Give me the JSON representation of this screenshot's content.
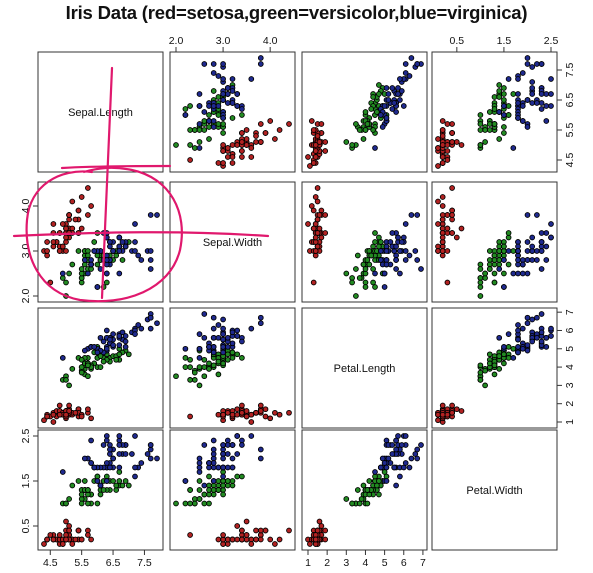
{
  "chart_data": {
    "type": "scatter",
    "title": "Iris Data (red=setosa,green=versicolor,blue=virginica)",
    "variables": [
      "Sepal.Length",
      "Sepal.Width",
      "Petal.Length",
      "Petal.Width"
    ],
    "axis_ranges": {
      "Sepal.Length": [
        4.3,
        7.9
      ],
      "Sepal.Width": [
        2.0,
        4.4
      ],
      "Petal.Length": [
        1.0,
        6.9
      ],
      "Petal.Width": [
        0.1,
        2.5
      ]
    },
    "tick_labels": {
      "Sepal.Length": [
        "4.5",
        "5.5",
        "6.5",
        "7.5"
      ],
      "Sepal.Width": [
        "2.0",
        "3.0",
        "4.0"
      ],
      "Petal.Length": [
        "1",
        "2",
        "3",
        "4",
        "5",
        "6",
        "7"
      ],
      "Petal.Width": [
        "0.5",
        "1.5",
        "2.5"
      ]
    },
    "series": [
      {
        "name": "setosa",
        "color": "#b22222",
        "points": [
          [
            5.1,
            3.5,
            1.4,
            0.2
          ],
          [
            4.9,
            3.0,
            1.4,
            0.2
          ],
          [
            4.7,
            3.2,
            1.3,
            0.2
          ],
          [
            4.6,
            3.1,
            1.5,
            0.2
          ],
          [
            5.0,
            3.6,
            1.4,
            0.2
          ],
          [
            5.4,
            3.9,
            1.7,
            0.4
          ],
          [
            4.6,
            3.4,
            1.4,
            0.3
          ],
          [
            5.0,
            3.4,
            1.5,
            0.2
          ],
          [
            4.4,
            2.9,
            1.4,
            0.2
          ],
          [
            4.9,
            3.1,
            1.5,
            0.1
          ],
          [
            5.4,
            3.7,
            1.5,
            0.2
          ],
          [
            4.8,
            3.4,
            1.6,
            0.2
          ],
          [
            4.8,
            3.0,
            1.4,
            0.1
          ],
          [
            4.3,
            3.0,
            1.1,
            0.1
          ],
          [
            5.8,
            4.0,
            1.2,
            0.2
          ],
          [
            5.7,
            4.4,
            1.5,
            0.4
          ],
          [
            5.4,
            3.9,
            1.3,
            0.4
          ],
          [
            5.1,
            3.5,
            1.4,
            0.3
          ],
          [
            5.7,
            3.8,
            1.7,
            0.3
          ],
          [
            5.1,
            3.8,
            1.5,
            0.3
          ],
          [
            5.4,
            3.4,
            1.7,
            0.2
          ],
          [
            5.1,
            3.7,
            1.5,
            0.4
          ],
          [
            4.6,
            3.6,
            1.0,
            0.2
          ],
          [
            5.1,
            3.3,
            1.7,
            0.5
          ],
          [
            4.8,
            3.4,
            1.9,
            0.2
          ],
          [
            5.0,
            3.0,
            1.6,
            0.2
          ],
          [
            5.0,
            3.4,
            1.6,
            0.4
          ],
          [
            5.2,
            3.5,
            1.5,
            0.2
          ],
          [
            5.2,
            3.4,
            1.4,
            0.2
          ],
          [
            4.7,
            3.2,
            1.6,
            0.2
          ],
          [
            4.8,
            3.1,
            1.6,
            0.2
          ],
          [
            5.4,
            3.4,
            1.5,
            0.4
          ],
          [
            5.2,
            4.1,
            1.5,
            0.1
          ],
          [
            5.5,
            4.2,
            1.4,
            0.2
          ],
          [
            4.9,
            3.1,
            1.5,
            0.2
          ],
          [
            5.0,
            3.2,
            1.2,
            0.2
          ],
          [
            5.5,
            3.5,
            1.3,
            0.2
          ],
          [
            4.9,
            3.6,
            1.4,
            0.1
          ],
          [
            4.4,
            3.0,
            1.3,
            0.2
          ],
          [
            5.1,
            3.4,
            1.5,
            0.2
          ],
          [
            5.0,
            3.5,
            1.3,
            0.3
          ],
          [
            4.5,
            2.3,
            1.3,
            0.3
          ],
          [
            4.4,
            3.2,
            1.3,
            0.2
          ],
          [
            5.0,
            3.5,
            1.6,
            0.6
          ],
          [
            5.1,
            3.8,
            1.9,
            0.4
          ],
          [
            4.8,
            3.0,
            1.4,
            0.3
          ],
          [
            5.1,
            3.8,
            1.6,
            0.2
          ],
          [
            4.6,
            3.2,
            1.4,
            0.2
          ],
          [
            5.3,
            3.7,
            1.5,
            0.2
          ],
          [
            5.0,
            3.3,
            1.4,
            0.2
          ]
        ]
      },
      {
        "name": "versicolor",
        "color": "#228b22",
        "points": [
          [
            7.0,
            3.2,
            4.7,
            1.4
          ],
          [
            6.4,
            3.2,
            4.5,
            1.5
          ],
          [
            6.9,
            3.1,
            4.9,
            1.5
          ],
          [
            5.5,
            2.3,
            4.0,
            1.3
          ],
          [
            6.5,
            2.8,
            4.6,
            1.5
          ],
          [
            5.7,
            2.8,
            4.5,
            1.3
          ],
          [
            6.3,
            3.3,
            4.7,
            1.6
          ],
          [
            4.9,
            2.4,
            3.3,
            1.0
          ],
          [
            6.6,
            2.9,
            4.6,
            1.3
          ],
          [
            5.2,
            2.7,
            3.9,
            1.4
          ],
          [
            5.0,
            2.0,
            3.5,
            1.0
          ],
          [
            5.9,
            3.0,
            4.2,
            1.5
          ],
          [
            6.0,
            2.2,
            4.0,
            1.0
          ],
          [
            6.1,
            2.9,
            4.7,
            1.4
          ],
          [
            5.6,
            2.9,
            3.6,
            1.3
          ],
          [
            6.7,
            3.1,
            4.4,
            1.4
          ],
          [
            5.6,
            3.0,
            4.5,
            1.5
          ],
          [
            5.8,
            2.7,
            4.1,
            1.0
          ],
          [
            6.2,
            2.2,
            4.5,
            1.5
          ],
          [
            5.6,
            2.5,
            3.9,
            1.1
          ],
          [
            5.9,
            3.2,
            4.8,
            1.8
          ],
          [
            6.1,
            2.8,
            4.0,
            1.3
          ],
          [
            6.3,
            2.5,
            4.9,
            1.5
          ],
          [
            6.1,
            2.8,
            4.7,
            1.2
          ],
          [
            6.4,
            2.9,
            4.3,
            1.3
          ],
          [
            6.6,
            3.0,
            4.4,
            1.4
          ],
          [
            6.8,
            2.8,
            4.8,
            1.4
          ],
          [
            6.7,
            3.0,
            5.0,
            1.7
          ],
          [
            6.0,
            2.9,
            4.5,
            1.5
          ],
          [
            5.7,
            2.6,
            3.5,
            1.0
          ],
          [
            5.5,
            2.4,
            3.8,
            1.1
          ],
          [
            5.5,
            2.4,
            3.7,
            1.0
          ],
          [
            5.8,
            2.7,
            3.9,
            1.2
          ],
          [
            6.0,
            2.7,
            5.1,
            1.6
          ],
          [
            5.4,
            3.0,
            4.5,
            1.5
          ],
          [
            6.0,
            3.4,
            4.5,
            1.6
          ],
          [
            6.7,
            3.1,
            4.7,
            1.5
          ],
          [
            6.3,
            2.3,
            4.4,
            1.3
          ],
          [
            5.6,
            3.0,
            4.1,
            1.3
          ],
          [
            5.5,
            2.5,
            4.0,
            1.3
          ],
          [
            5.5,
            2.6,
            4.4,
            1.2
          ],
          [
            6.1,
            3.0,
            4.6,
            1.4
          ],
          [
            5.8,
            2.6,
            4.0,
            1.2
          ],
          [
            5.0,
            2.3,
            3.3,
            1.0
          ],
          [
            5.6,
            2.7,
            4.2,
            1.3
          ],
          [
            5.7,
            3.0,
            4.2,
            1.2
          ],
          [
            5.7,
            2.9,
            4.2,
            1.3
          ],
          [
            6.2,
            2.9,
            4.3,
            1.3
          ],
          [
            5.1,
            2.5,
            3.0,
            1.1
          ],
          [
            5.7,
            2.8,
            4.1,
            1.3
          ]
        ]
      },
      {
        "name": "virginica",
        "color": "#1f2a8f",
        "points": [
          [
            6.3,
            3.3,
            6.0,
            2.5
          ],
          [
            5.8,
            2.7,
            5.1,
            1.9
          ],
          [
            7.1,
            3.0,
            5.9,
            2.1
          ],
          [
            6.3,
            2.9,
            5.6,
            1.8
          ],
          [
            6.5,
            3.0,
            5.8,
            2.2
          ],
          [
            7.6,
            3.0,
            6.6,
            2.1
          ],
          [
            4.9,
            2.5,
            4.5,
            1.7
          ],
          [
            7.3,
            2.9,
            6.3,
            1.8
          ],
          [
            6.7,
            2.5,
            5.8,
            1.8
          ],
          [
            7.2,
            3.6,
            6.1,
            2.5
          ],
          [
            6.5,
            3.2,
            5.1,
            2.0
          ],
          [
            6.4,
            2.7,
            5.3,
            1.9
          ],
          [
            6.8,
            3.0,
            5.5,
            2.1
          ],
          [
            5.7,
            2.5,
            5.0,
            2.0
          ],
          [
            5.8,
            2.8,
            5.1,
            2.4
          ],
          [
            6.4,
            3.2,
            5.3,
            2.3
          ],
          [
            6.5,
            3.0,
            5.5,
            1.8
          ],
          [
            7.7,
            3.8,
            6.7,
            2.2
          ],
          [
            7.7,
            2.6,
            6.9,
            2.3
          ],
          [
            6.0,
            2.2,
            5.0,
            1.5
          ],
          [
            6.9,
            3.2,
            5.7,
            2.3
          ],
          [
            5.6,
            2.8,
            4.9,
            2.0
          ],
          [
            7.7,
            2.8,
            6.7,
            2.0
          ],
          [
            6.3,
            2.7,
            4.9,
            1.8
          ],
          [
            6.7,
            3.3,
            5.7,
            2.1
          ],
          [
            7.2,
            3.2,
            6.0,
            1.8
          ],
          [
            6.2,
            2.8,
            4.8,
            1.8
          ],
          [
            6.1,
            3.0,
            4.9,
            1.8
          ],
          [
            6.4,
            2.8,
            5.6,
            2.1
          ],
          [
            7.2,
            3.0,
            5.8,
            1.6
          ],
          [
            7.4,
            2.8,
            6.1,
            1.9
          ],
          [
            7.9,
            3.8,
            6.4,
            2.0
          ],
          [
            6.4,
            2.8,
            5.6,
            2.2
          ],
          [
            6.3,
            2.8,
            5.1,
            1.5
          ],
          [
            6.1,
            2.6,
            5.6,
            1.4
          ],
          [
            7.7,
            3.0,
            6.1,
            2.3
          ],
          [
            6.3,
            3.4,
            5.6,
            2.4
          ],
          [
            6.4,
            3.1,
            5.5,
            1.8
          ],
          [
            6.0,
            3.0,
            4.8,
            1.8
          ],
          [
            6.9,
            3.1,
            5.4,
            2.1
          ],
          [
            6.7,
            3.1,
            5.6,
            2.4
          ],
          [
            6.9,
            3.1,
            5.1,
            2.3
          ],
          [
            5.8,
            2.7,
            5.1,
            1.9
          ],
          [
            6.8,
            3.2,
            5.9,
            2.3
          ],
          [
            6.7,
            3.3,
            5.7,
            2.5
          ],
          [
            6.7,
            3.0,
            5.2,
            2.3
          ],
          [
            6.3,
            2.5,
            5.0,
            1.9
          ],
          [
            6.5,
            3.0,
            5.2,
            2.0
          ],
          [
            6.2,
            3.4,
            5.4,
            2.3
          ],
          [
            5.9,
            3.0,
            5.1,
            1.8
          ]
        ]
      }
    ],
    "grid": false,
    "legend": "none"
  }
}
